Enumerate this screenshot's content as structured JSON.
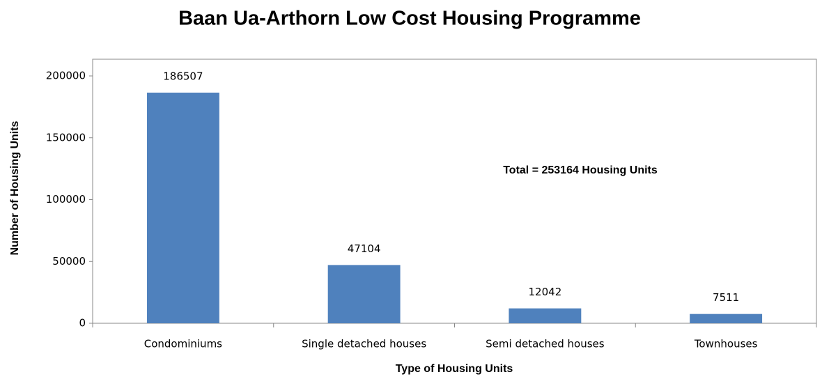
{
  "chart_data": {
    "type": "bar",
    "title": "Baan Ua-Arthorn Low Cost Housing Programme",
    "x_label": "Type of Housing Units",
    "y_label": "Number of Housing Units",
    "annotation": "Total  = 253164  Housing Units",
    "categories": [
      "Condominiums",
      "Single detached houses",
      "Semi detached houses",
      "Townhouses"
    ],
    "values": [
      186507,
      47104,
      12042,
      7511
    ],
    "color": "#4f81bd",
    "ylim": [
      0,
      200000
    ],
    "yticks": [
      0,
      50000,
      100000,
      150000,
      200000
    ],
    "grid": false
  }
}
